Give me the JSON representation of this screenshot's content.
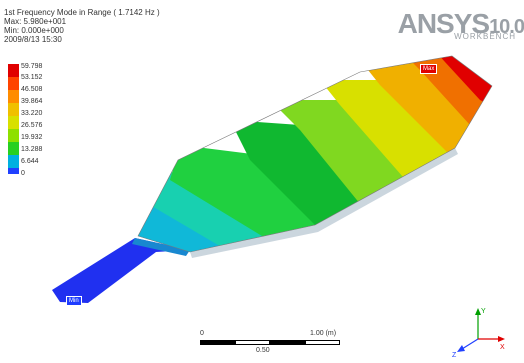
{
  "header": {
    "line1": "1st Frequency Mode in Range ( 1.7142 Hz )",
    "line2": "Max: 5.980e+001",
    "line3": "Min: 0.000e+000",
    "line4": "2009/8/13 15:30"
  },
  "logo": {
    "main": "ANSYS",
    "version": "10.0",
    "sub": "WORKBENCH"
  },
  "legend": {
    "labels": [
      "59.798",
      "53.152",
      "46.508",
      "39.864",
      "33.220",
      "26.576",
      "19.932",
      "13.288",
      "6.644",
      "0"
    ],
    "colors": [
      "#e00000",
      "#ff4400",
      "#ff8c00",
      "#f0c000",
      "#d8e000",
      "#8ee000",
      "#28d020",
      "#00d0a0",
      "#00b0e0",
      "#2040ff"
    ]
  },
  "tags": {
    "max": "Max",
    "min": "Min"
  },
  "scale": {
    "left": "0",
    "right": "1.00 (m)",
    "unit": "0.50"
  },
  "triad": {
    "x": "X",
    "y": "Y",
    "z": "Z"
  }
}
